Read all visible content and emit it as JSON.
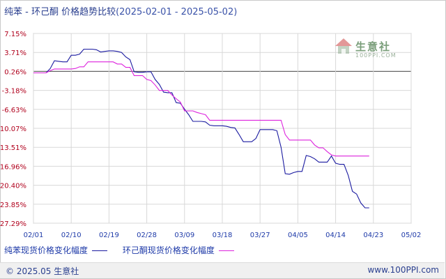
{
  "header": {
    "title": "纯苯 - 环己酮 价格趋势比较",
    "range": "(2025-02-01 - 2025-05-02)"
  },
  "watermark": {
    "name": "生意社",
    "site": "100PPI.COM"
  },
  "legend": [
    {
      "label": "纯苯现货价格变化幅度",
      "color": "#1a1aa0"
    },
    {
      "label": "环己酮现货价格变化幅度",
      "color": "#dd22dd"
    }
  ],
  "footer": {
    "copyright": "© 2025.05 生意社",
    "url": "www.100PPI.com"
  },
  "colors": {
    "axis_text": "#b0001c",
    "x_text": "#1e3aa8",
    "grid": "#d8d8d8",
    "zero_line": "#666666"
  },
  "chart_data": {
    "type": "line",
    "x_ticks": [
      "02/01",
      "02/10",
      "02/19",
      "02/28",
      "03/09",
      "03/18",
      "03/27",
      "04/05",
      "04/14",
      "04/23",
      "05/02"
    ],
    "y_ticks": [
      "7.15%",
      "3.71%",
      "0.26%",
      "-3.18%",
      "-6.63%",
      "-10.07%",
      "-13.51%",
      "-16.96%",
      "-20.40%",
      "-23.85%",
      "-27.29%"
    ],
    "ylim": [
      -27.29,
      7.15
    ],
    "x_range_days": [
      0,
      90
    ],
    "series": [
      {
        "name": "纯苯现货价格变化幅度",
        "color": "#1a1aa0",
        "points": [
          [
            0,
            0
          ],
          [
            3,
            0
          ],
          [
            4,
            0.8
          ],
          [
            5,
            2.2
          ],
          [
            6,
            2.1
          ],
          [
            7,
            2.0
          ],
          [
            8,
            2.0
          ],
          [
            9,
            3.2
          ],
          [
            10,
            3.2
          ],
          [
            11,
            3.4
          ],
          [
            12,
            4.3
          ],
          [
            13,
            4.3
          ],
          [
            14,
            4.3
          ],
          [
            15,
            4.2
          ],
          [
            16,
            3.8
          ],
          [
            17,
            3.9
          ],
          [
            18,
            4.0
          ],
          [
            19,
            4.0
          ],
          [
            20,
            3.9
          ],
          [
            21,
            3.7
          ],
          [
            22,
            2.9
          ],
          [
            23,
            2.4
          ],
          [
            24,
            0.2
          ],
          [
            25,
            0.1
          ],
          [
            26,
            0.1
          ],
          [
            27,
            0.2
          ],
          [
            28,
            0.2
          ],
          [
            29,
            -1.2
          ],
          [
            30,
            -2.1
          ],
          [
            31,
            -3.5
          ],
          [
            32,
            -3.6
          ],
          [
            33,
            -3.6
          ],
          [
            34,
            -5.4
          ],
          [
            35,
            -5.5
          ],
          [
            36,
            -6.6
          ],
          [
            37,
            -7.6
          ],
          [
            38,
            -8.8
          ],
          [
            39,
            -8.8
          ],
          [
            40,
            -8.8
          ],
          [
            41,
            -8.9
          ],
          [
            42,
            -9.5
          ],
          [
            43,
            -9.6
          ],
          [
            44,
            -9.6
          ],
          [
            45,
            -9.6
          ],
          [
            46,
            -9.7
          ],
          [
            47,
            -9.9
          ],
          [
            48,
            -10.0
          ],
          [
            49,
            -11.2
          ],
          [
            50,
            -12.5
          ],
          [
            51,
            -12.5
          ],
          [
            52,
            -12.5
          ],
          [
            53,
            -11.9
          ],
          [
            54,
            -10.3
          ],
          [
            55,
            -10.3
          ],
          [
            56,
            -10.3
          ],
          [
            57,
            -10.3
          ],
          [
            58,
            -10.5
          ],
          [
            59,
            -13.5
          ],
          [
            60,
            -18.3
          ],
          [
            61,
            -18.4
          ],
          [
            62,
            -18.1
          ],
          [
            63,
            -17.9
          ],
          [
            64,
            -17.9
          ],
          [
            65,
            -15.0
          ],
          [
            66,
            -15.2
          ],
          [
            67,
            -15.6
          ],
          [
            68,
            -16.2
          ],
          [
            69,
            -16.2
          ],
          [
            70,
            -16.2
          ],
          [
            71,
            -15.1
          ],
          [
            72,
            -16.4
          ],
          [
            73,
            -16.6
          ],
          [
            74,
            -16.6
          ],
          [
            75,
            -18.6
          ],
          [
            76,
            -21.5
          ],
          [
            77,
            -22.0
          ],
          [
            78,
            -23.6
          ],
          [
            79,
            -24.5
          ],
          [
            80,
            -24.5
          ]
        ]
      },
      {
        "name": "环己酮现货价格变化幅度",
        "color": "#dd22dd",
        "points": [
          [
            0,
            0
          ],
          [
            3,
            0
          ],
          [
            4,
            0.4
          ],
          [
            5,
            0.7
          ],
          [
            6,
            0.7
          ],
          [
            7,
            0.7
          ],
          [
            8,
            0.7
          ],
          [
            9,
            0.7
          ],
          [
            10,
            0.8
          ],
          [
            11,
            1.1
          ],
          [
            12,
            1.1
          ],
          [
            13,
            2.0
          ],
          [
            14,
            2.0
          ],
          [
            15,
            2.0
          ],
          [
            16,
            2.0
          ],
          [
            17,
            2.0
          ],
          [
            18,
            2.0
          ],
          [
            19,
            2.0
          ],
          [
            20,
            1.6
          ],
          [
            21,
            1.6
          ],
          [
            22,
            1.0
          ],
          [
            23,
            1.0
          ],
          [
            24,
            -0.5
          ],
          [
            25,
            -0.5
          ],
          [
            26,
            -0.5
          ],
          [
            27,
            -1.2
          ],
          [
            28,
            -1.4
          ],
          [
            29,
            -2.2
          ],
          [
            30,
            -3.2
          ],
          [
            31,
            -3.2
          ],
          [
            32,
            -3.2
          ],
          [
            33,
            -4.0
          ],
          [
            34,
            -4.7
          ],
          [
            35,
            -5.3
          ],
          [
            36,
            -6.9
          ],
          [
            37,
            -6.9
          ],
          [
            38,
            -6.9
          ],
          [
            39,
            -7.2
          ],
          [
            40,
            -7.4
          ],
          [
            41,
            -7.6
          ],
          [
            42,
            -8.6
          ],
          [
            43,
            -8.6
          ],
          [
            44,
            -8.6
          ],
          [
            45,
            -8.6
          ],
          [
            46,
            -8.6
          ],
          [
            47,
            -8.6
          ],
          [
            48,
            -8.6
          ],
          [
            49,
            -8.6
          ],
          [
            50,
            -8.6
          ],
          [
            51,
            -8.6
          ],
          [
            52,
            -8.6
          ],
          [
            53,
            -8.6
          ],
          [
            54,
            -8.6
          ],
          [
            55,
            -8.6
          ],
          [
            56,
            -8.6
          ],
          [
            57,
            -8.6
          ],
          [
            58,
            -8.6
          ],
          [
            59,
            -8.6
          ],
          [
            60,
            -11.2
          ],
          [
            61,
            -12.2
          ],
          [
            62,
            -12.2
          ],
          [
            63,
            -12.2
          ],
          [
            64,
            -12.2
          ],
          [
            65,
            -12.2
          ],
          [
            66,
            -12.2
          ],
          [
            67,
            -13.1
          ],
          [
            68,
            -13.6
          ],
          [
            69,
            -13.6
          ],
          [
            70,
            -14.3
          ],
          [
            71,
            -14.9
          ],
          [
            72,
            -15.1
          ],
          [
            73,
            -15.1
          ],
          [
            74,
            -15.1
          ],
          [
            75,
            -15.1
          ],
          [
            76,
            -15.1
          ],
          [
            77,
            -15.1
          ],
          [
            78,
            -15.1
          ],
          [
            79,
            -15.1
          ],
          [
            80,
            -15.1
          ]
        ]
      }
    ]
  }
}
